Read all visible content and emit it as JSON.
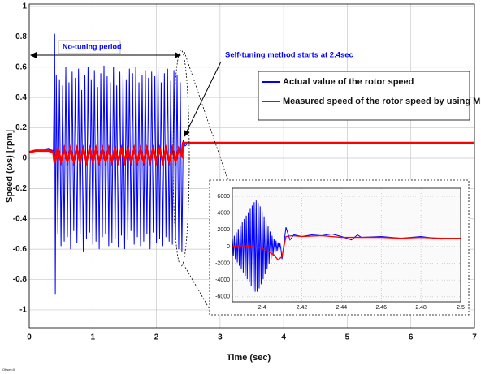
{
  "chart_data": [
    {
      "type": "line",
      "xlabel": "Time (sec)",
      "ylabel": "Speed (ωs) [rpm]",
      "xlim": [
        0,
        7
      ],
      "ylim": [
        -1.118,
        1.016
      ],
      "xticks": [
        0,
        1,
        2,
        3,
        4,
        5,
        6,
        7
      ],
      "yticks": [
        -1,
        -0.8,
        -0.6,
        -0.4,
        -0.2,
        0,
        0.2,
        0.4,
        0.6,
        0.8,
        1
      ],
      "grid": true,
      "legend": "upper right",
      "annotations": [
        "No-tuning period",
        "Self-tuning method starts at 2.4sec",
        "Offset=0"
      ],
      "series": [
        {
          "name": "Actual value of the rotor speed",
          "color": "#0000ff",
          "x": [
            0,
            0.1,
            0.2,
            0.3,
            0.38,
            0.4,
            0.41,
            0.425,
            0.45,
            0.475,
            0.5,
            0.525,
            0.55,
            0.575,
            0.6,
            0.625,
            0.65,
            0.675,
            0.7,
            0.725,
            0.75,
            0.775,
            0.8,
            0.825,
            0.85,
            0.875,
            0.9,
            0.925,
            0.95,
            0.975,
            1,
            1.025,
            1.05,
            1.075,
            1.1,
            1.125,
            1.15,
            1.175,
            1.2,
            1.225,
            1.25,
            1.275,
            1.3,
            1.325,
            1.35,
            1.375,
            1.4,
            1.425,
            1.45,
            1.475,
            1.5,
            1.525,
            1.55,
            1.575,
            1.6,
            1.625,
            1.65,
            1.675,
            1.7,
            1.725,
            1.75,
            1.775,
            1.8,
            1.825,
            1.85,
            1.875,
            1.9,
            1.925,
            1.95,
            1.975,
            2,
            2.025,
            2.05,
            2.075,
            2.1,
            2.125,
            2.15,
            2.175,
            2.2,
            2.225,
            2.25,
            2.275,
            2.3,
            2.325,
            2.35,
            2.375,
            2.4,
            2.42,
            2.45,
            2.5,
            3,
            4,
            5,
            6,
            7
          ],
          "values": [
            0.04,
            0.05,
            0.05,
            0.06,
            0.05,
            0.82,
            -0.9,
            0.55,
            -0.5,
            0.52,
            -0.58,
            0.48,
            -0.55,
            0.6,
            -0.52,
            0.5,
            -0.6,
            0.57,
            -0.48,
            0.53,
            -0.56,
            0.59,
            -0.5,
            0.45,
            -0.62,
            0.55,
            -0.53,
            0.6,
            -0.49,
            0.52,
            -0.57,
            0.58,
            -0.55,
            0.47,
            -0.6,
            0.56,
            -0.52,
            0.61,
            -0.5,
            0.54,
            -0.58,
            0.5,
            -0.56,
            0.6,
            -0.53,
            0.48,
            -0.59,
            0.57,
            -0.51,
            0.55,
            -0.6,
            0.52,
            -0.54,
            0.59,
            -0.48,
            0.56,
            -0.57,
            0.6,
            -0.52,
            0.5,
            -0.58,
            0.55,
            -0.55,
            0.58,
            -0.5,
            0.53,
            -0.6,
            0.57,
            -0.49,
            0.54,
            -0.56,
            0.6,
            -0.53,
            0.5,
            -0.58,
            0.56,
            -0.52,
            0.59,
            -0.55,
            0.51,
            -0.57,
            0.58,
            -0.54,
            0.55,
            -0.6,
            0.5,
            -0.62,
            0.12,
            0.08,
            0.1,
            0.1,
            0.1,
            0.1,
            0.1,
            0.1
          ]
        },
        {
          "name": "Measured speed of the rotor speed by using MRAS",
          "color": "#ff0000",
          "x": [
            0,
            0.1,
            0.2,
            0.3,
            0.38,
            0.4,
            0.45,
            0.5,
            0.55,
            0.6,
            0.65,
            0.7,
            0.75,
            0.8,
            0.85,
            0.9,
            0.95,
            1,
            1.05,
            1.1,
            1.15,
            1.2,
            1.25,
            1.3,
            1.35,
            1.4,
            1.45,
            1.5,
            1.55,
            1.6,
            1.65,
            1.7,
            1.75,
            1.8,
            1.85,
            1.9,
            1.95,
            2,
            2.05,
            2.1,
            2.15,
            2.2,
            2.25,
            2.3,
            2.35,
            2.4,
            2.42,
            7
          ],
          "values": [
            0.04,
            0.05,
            0.05,
            0.05,
            0.04,
            -0.03,
            0.06,
            -0.02,
            0.06,
            -0.02,
            0.06,
            -0.02,
            0.06,
            -0.02,
            0.06,
            -0.02,
            0.06,
            -0.02,
            0.06,
            -0.02,
            0.06,
            -0.02,
            0.06,
            -0.02,
            0.06,
            -0.02,
            0.06,
            -0.02,
            0.06,
            -0.02,
            0.06,
            -0.02,
            0.06,
            -0.02,
            0.06,
            -0.02,
            0.06,
            -0.02,
            0.06,
            -0.02,
            0.06,
            -0.02,
            0.06,
            -0.02,
            0.06,
            0.02,
            0.1,
            0.1
          ]
        }
      ]
    },
    {
      "type": "line",
      "xlim": [
        2.385,
        2.5
      ],
      "ylim": [
        -6600,
        6970
      ],
      "xticks": [
        2.4,
        2.42,
        2.44,
        2.46,
        2.48,
        2.5
      ],
      "yticks": [
        -6000,
        -4000,
        -2000,
        0,
        2000,
        4000,
        6000
      ],
      "grid": true,
      "series": [
        {
          "color": "#0000ff",
          "x": [
            2.385,
            2.3855,
            2.386,
            2.3865,
            2.387,
            2.3875,
            2.388,
            2.3885,
            2.389,
            2.3895,
            2.39,
            2.3905,
            2.391,
            2.3915,
            2.392,
            2.3925,
            2.393,
            2.3935,
            2.394,
            2.3945,
            2.395,
            2.3955,
            2.396,
            2.3965,
            2.397,
            2.3975,
            2.398,
            2.3985,
            2.399,
            2.3995,
            2.4,
            2.4005,
            2.401,
            2.4015,
            2.402,
            2.4025,
            2.403,
            2.4035,
            2.404,
            2.4045,
            2.405,
            2.4055,
            2.406,
            2.4065,
            2.407,
            2.4075,
            2.408,
            2.4085,
            2.409,
            2.4095,
            2.41,
            2.412,
            2.414,
            2.416,
            2.42,
            2.425,
            2.43,
            2.435,
            2.44,
            2.445,
            2.448,
            2.45,
            2.46,
            2.47,
            2.48,
            2.49,
            2.5
          ],
          "values": [
            1000,
            -1100,
            1300,
            -1500,
            1700,
            -1900,
            2100,
            -2300,
            2500,
            -2700,
            2900,
            -3100,
            3300,
            -3500,
            3700,
            -3900,
            4100,
            -4300,
            4500,
            -4700,
            4900,
            -5100,
            5300,
            -5400,
            5500,
            -5400,
            5200,
            -5000,
            4800,
            -4500,
            4200,
            -3900,
            3600,
            -3300,
            3000,
            -2700,
            2400,
            -2100,
            1800,
            -1500,
            1300,
            -1100,
            900,
            -800,
            700,
            -600,
            500,
            -450,
            400,
            -350,
            -1500,
            2300,
            800,
            1400,
            1200,
            1400,
            1300,
            1500,
            1200,
            800,
            1400,
            1100,
            1200,
            1000,
            1200,
            900,
            1000
          ]
        },
        {
          "color": "#ff0000",
          "x": [
            2.385,
            2.39,
            2.395,
            2.4,
            2.403,
            2.406,
            2.408,
            2.41,
            2.412,
            2.415,
            2.42,
            2.43,
            2.44,
            2.45,
            2.46,
            2.47,
            2.48,
            2.49,
            2.5
          ],
          "values": [
            0,
            100,
            0,
            -200,
            -600,
            -1000,
            -1600,
            -1200,
            1200,
            1300,
            1200,
            1300,
            1100,
            1100,
            1100,
            1000,
            1100,
            1000,
            1000
          ]
        }
      ]
    }
  ]
}
